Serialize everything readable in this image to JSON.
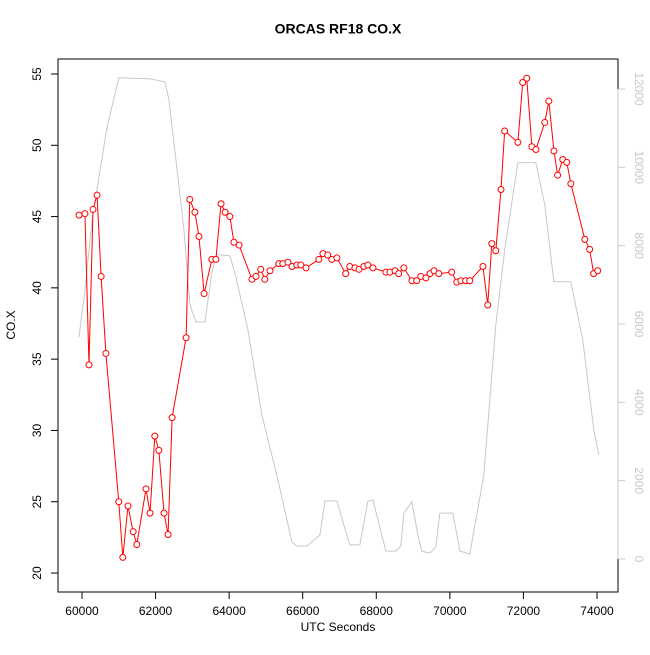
{
  "chart_data": {
    "type": "line",
    "title": "ORCAS RF18 CO.X",
    "x_label": "UTC Seconds",
    "y_label": "CO.X",
    "xlim": [
      59348,
      74571
    ],
    "ylim": [
      18.67,
      56.05
    ],
    "y2lim": [
      -843,
      12766
    ],
    "xticks": [
      60000,
      62000,
      64000,
      66000,
      68000,
      70000,
      72000,
      74000
    ],
    "yticks": [
      20,
      25,
      30,
      35,
      40,
      45,
      50,
      55
    ],
    "y2ticks": [
      0,
      2000,
      4000,
      6000,
      8000,
      10000,
      12000
    ],
    "series": [
      {
        "color": "#ff0000",
        "marker": "circle",
        "x": [
          59920,
          60080,
          60190,
          60300,
          60410,
          60520,
          60650,
          61000,
          61110,
          61250,
          61390,
          61490,
          61740,
          61850,
          61980,
          62090,
          62230,
          62340,
          62450,
          62830,
          62930,
          63070,
          63180,
          63320,
          63530,
          63640,
          63780,
          63890,
          64020,
          64130,
          64270,
          64620,
          64730,
          64860,
          64970,
          65110,
          65350,
          65460,
          65600,
          65710,
          65840,
          65950,
          66090,
          66440,
          66550,
          66680,
          66790,
          66930,
          67170,
          67280,
          67420,
          67530,
          67660,
          67770,
          67910,
          68260,
          68370,
          68510,
          68610,
          68750,
          68970,
          69100,
          69210,
          69350,
          69460,
          69570,
          69700,
          70050,
          70190,
          70300,
          70430,
          70540,
          70900,
          71030,
          71140,
          71250,
          71390,
          71490,
          71850,
          71980,
          72090,
          72230,
          72340,
          72580,
          72690,
          72830,
          72930,
          73070,
          73180,
          73290,
          73670,
          73800,
          73910,
          74020
        ],
        "values": [
          45.1,
          45.2,
          34.6,
          45.5,
          46.5,
          40.8,
          35.4,
          25.0,
          21.1,
          24.7,
          22.9,
          22.0,
          25.9,
          24.2,
          29.6,
          28.6,
          24.2,
          22.7,
          30.9,
          36.5,
          46.2,
          45.3,
          43.6,
          39.6,
          42.0,
          42.0,
          45.9,
          45.3,
          45.0,
          43.2,
          43.0,
          40.6,
          40.8,
          41.3,
          40.6,
          41.2,
          41.7,
          41.7,
          41.8,
          41.5,
          41.6,
          41.6,
          41.4,
          42.0,
          42.4,
          42.3,
          42.0,
          42.1,
          41.0,
          41.5,
          41.4,
          41.3,
          41.5,
          41.6,
          41.4,
          41.1,
          41.1,
          41.2,
          41.0,
          41.4,
          40.5,
          40.5,
          40.8,
          40.7,
          41.0,
          41.2,
          41.0,
          41.1,
          40.4,
          40.5,
          40.5,
          40.5,
          41.5,
          38.8,
          43.1,
          42.6,
          46.9,
          51.0,
          50.2,
          54.4,
          54.7,
          49.9,
          49.7,
          51.6,
          53.1,
          49.6,
          47.9,
          49.0,
          48.8,
          47.3,
          43.4,
          42.7,
          41.0,
          41.2
        ]
      },
      {
        "color": "#c8c8c8",
        "axis": "y2",
        "x": [
          59918,
          60082,
          60272,
          60679,
          61005,
          61848,
          62255,
          62364,
          62554,
          62772,
          62935,
          63098,
          63342,
          63533,
          63668,
          64022,
          64185,
          64511,
          64891,
          65326,
          65707,
          65842,
          66114,
          66467,
          66603,
          66929,
          67174,
          67283,
          67554,
          67772,
          67908,
          68261,
          68533,
          68668,
          68750,
          68967,
          69130,
          69239,
          69457,
          69620,
          69728,
          70082,
          70272,
          70543,
          70924,
          71250,
          71495,
          71848,
          72337,
          72582,
          72826,
          73288,
          73614,
          73913,
          74049
        ],
        "values": [
          5670,
          6870,
          8660,
          11010,
          12290,
          12260,
          12180,
          11720,
          10190,
          8400,
          6490,
          6050,
          6050,
          7330,
          7770,
          7740,
          7200,
          5850,
          3680,
          2020,
          430,
          330,
          330,
          610,
          1480,
          1480,
          690,
          360,
          360,
          1480,
          1510,
          200,
          200,
          330,
          1170,
          1460,
          610,
          200,
          150,
          310,
          1170,
          1170,
          200,
          130,
          2150,
          5980,
          7920,
          10120,
          10120,
          9040,
          7080,
          7080,
          5590,
          3300,
          2660
        ]
      }
    ]
  }
}
